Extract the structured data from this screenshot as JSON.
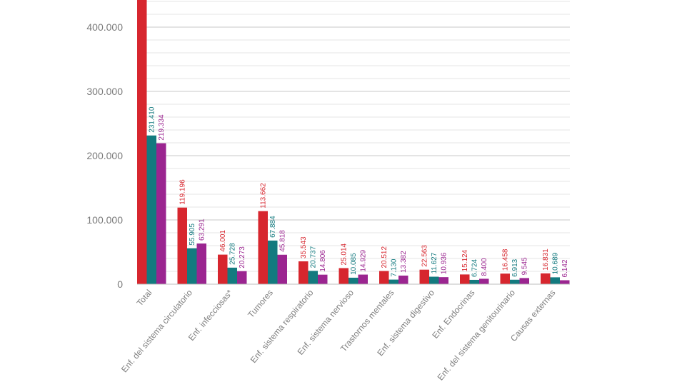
{
  "chart_data": {
    "type": "bar",
    "title": "",
    "xlabel": "",
    "ylabel": "",
    "ylim": [
      0,
      450000
    ],
    "grid": true,
    "y_ticks": [
      {
        "value": 0,
        "label": "0"
      },
      {
        "value": 100000,
        "label": "100.000"
      },
      {
        "value": 200000,
        "label": "200.000"
      },
      {
        "value": 300000,
        "label": "300.000"
      },
      {
        "value": 400000,
        "label": "400.000"
      }
    ],
    "categories": [
      "Total",
      "Enf. del sistema circulatorio",
      "Enf. infecciosas*",
      "Tumores",
      "Enf. sistema respiratorio",
      "Enf. sistema nervioso",
      "Trastornos mentales",
      "Enf. sistema digestivo",
      "Enf. Endocrinas",
      "Enf. del sistema genitourinario",
      "Causas externas"
    ],
    "series": [
      {
        "color": "#d7262e",
        "values": [
          450744,
          119196,
          46001,
          113662,
          35543,
          25014,
          20512,
          22563,
          15124,
          16458,
          16831
        ],
        "labels": [
          "",
          "119.196",
          "46.001",
          "113.662",
          "35.543",
          "25.014",
          "20.512",
          "22.563",
          "15.124",
          "16.458",
          "16.831"
        ]
      },
      {
        "color": "#137a7f",
        "values": [
          231410,
          55905,
          25728,
          67884,
          20737,
          10085,
          7130,
          11627,
          6724,
          6913,
          10689
        ],
        "labels": [
          "231.410",
          "55.905",
          "25.728",
          "67.884",
          "20.737",
          "10.085",
          "7.130",
          "11.627",
          "6.724",
          "6.913",
          "10.689"
        ]
      },
      {
        "color": "#9b2590",
        "values": [
          219334,
          63291,
          20273,
          45818,
          14806,
          14929,
          13382,
          10936,
          8400,
          9545,
          6142
        ],
        "labels": [
          "219.334",
          "63.291",
          "20.273",
          "45.818",
          "14.806",
          "14.929",
          "13.382",
          "10.936",
          "8.400",
          "9.545",
          "6.142"
        ]
      }
    ]
  }
}
